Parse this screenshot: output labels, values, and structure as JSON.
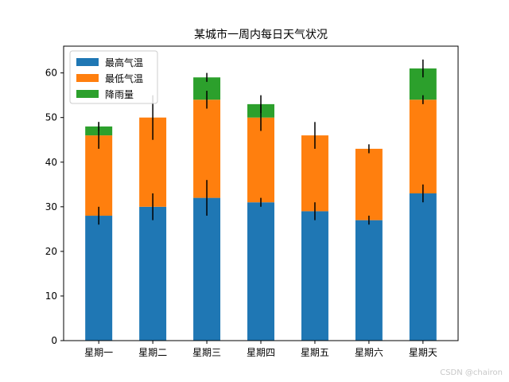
{
  "chart_data": {
    "type": "bar",
    "stacked": true,
    "title": "某城市一周内每日天气状况",
    "xlabel": "",
    "ylabel": "",
    "categories": [
      "星期一",
      "星期二",
      "星期三",
      "星期四",
      "星期五",
      "星期六",
      "星期天"
    ],
    "ylim": [
      0,
      66
    ],
    "yticks": [
      0,
      10,
      20,
      30,
      40,
      50,
      60
    ],
    "grid": false,
    "legend_position": "top-left",
    "series": [
      {
        "name": "最高气温",
        "color": "#1f77b4",
        "values": [
          28,
          30,
          32,
          31,
          29,
          27,
          33
        ],
        "errors": [
          2,
          3,
          4,
          1,
          2,
          1,
          2
        ]
      },
      {
        "name": "最低气温",
        "color": "#ff7f0e",
        "values": [
          18,
          20,
          22,
          19,
          17,
          16,
          21
        ],
        "errors": [
          3,
          5,
          2,
          3,
          3,
          1,
          1
        ]
      },
      {
        "name": "降雨量",
        "color": "#2ca02c",
        "values": [
          2,
          0,
          5,
          3,
          0,
          0,
          7
        ],
        "errors": [
          1,
          0,
          1,
          2,
          0,
          0,
          2
        ]
      }
    ]
  },
  "watermark": "CSDN @chairon"
}
